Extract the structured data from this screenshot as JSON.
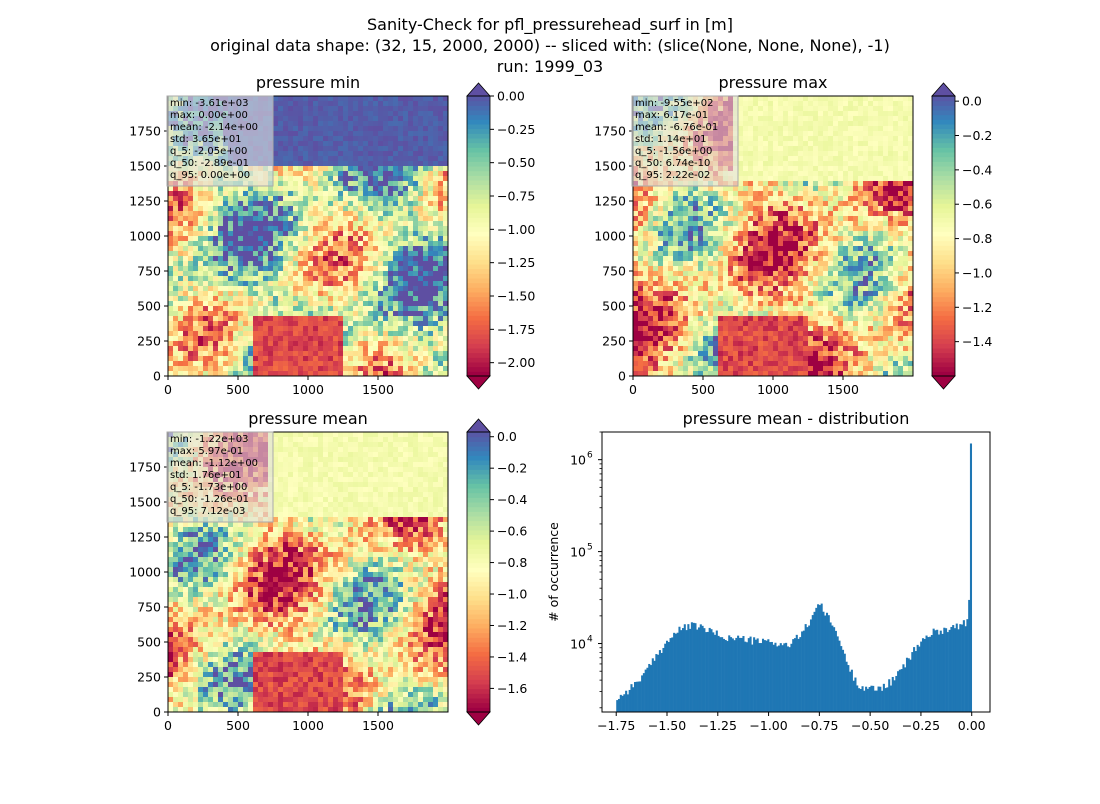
{
  "suptitle": [
    "Sanity-Check for pfl_pressurehead_surf in [m]",
    "original data shape: (32, 15, 2000, 2000) -- sliced with: (slice(None, None, None), -1)",
    "run: 1999_03"
  ],
  "chart_data": [
    {
      "type": "heatmap",
      "title": "pressure min",
      "xlim": [
        0,
        2000
      ],
      "ylim": [
        0,
        2000
      ],
      "xticks": [
        "0",
        "500",
        "1000",
        "1500"
      ],
      "yticks": [
        "0",
        "250",
        "500",
        "750",
        "1000",
        "1250",
        "1500",
        "1750"
      ],
      "colormap": "Spectral",
      "colorbar": {
        "range": [
          -2.1,
          0.0
        ],
        "ticks": [
          "0.00",
          "−0.25",
          "−0.50",
          "−0.75",
          "−1.00",
          "−1.25",
          "−1.50",
          "−1.75",
          "−2.00"
        ],
        "extend": "both"
      },
      "stats": [
        "min: -3.61e+03",
        "max: 0.00e+00",
        "mean: -2.14e+00",
        "std: 3.65e+01",
        "q_5: -2.05e+00",
        "q_50: -2.89e-01",
        "q_95: 0.00e+00"
      ]
    },
    {
      "type": "heatmap",
      "title": "pressure max",
      "xlim": [
        0,
        2000
      ],
      "ylim": [
        0,
        2000
      ],
      "xticks": [
        "0",
        "500",
        "1000",
        "1500"
      ],
      "yticks": [
        "0",
        "250",
        "500",
        "750",
        "1000",
        "1250",
        "1500",
        "1750"
      ],
      "colormap": "Spectral",
      "colorbar": {
        "range": [
          -1.6,
          0.03
        ],
        "ticks": [
          "0.0",
          "−0.2",
          "−0.4",
          "−0.6",
          "−0.8",
          "−1.0",
          "−1.2",
          "−1.4"
        ],
        "extend": "both"
      },
      "stats": [
        "min: -9.55e+02",
        "max: 6.17e-01",
        "mean: -6.76e-01",
        "std: 1.14e+01",
        "q_5: -1.56e+00",
        "q_50: 6.74e-10",
        "q_95: 2.22e-02"
      ]
    },
    {
      "type": "heatmap",
      "title": "pressure mean",
      "xlim": [
        0,
        2000
      ],
      "ylim": [
        0,
        2000
      ],
      "xticks": [
        "0",
        "500",
        "1000",
        "1500"
      ],
      "yticks": [
        "0",
        "250",
        "500",
        "750",
        "1000",
        "1250",
        "1500",
        "1750"
      ],
      "colormap": "Spectral",
      "colorbar": {
        "range": [
          -1.75,
          0.03
        ],
        "ticks": [
          "0.0",
          "−0.2",
          "−0.4",
          "−0.6",
          "−0.8",
          "−1.0",
          "−1.2",
          "−1.4",
          "−1.6"
        ],
        "extend": "both"
      },
      "stats": [
        "min: -1.22e+03",
        "max: 5.97e-01",
        "mean: -1.12e+00",
        "std: 1.76e+01",
        "q_5: -1.73e+00",
        "q_50: -1.26e-01",
        "q_95: 7.12e-03"
      ]
    },
    {
      "type": "bar",
      "title": "pressure mean - distribution",
      "xlabel": "",
      "ylabel": "# of occurrence",
      "xlim": [
        -1.82,
        0.09
      ],
      "ylim": [
        1800,
        2000000
      ],
      "yscale": "log",
      "color": "#1f77b4",
      "xticks": [
        "−1.75",
        "−1.50",
        "−1.25",
        "−1.00",
        "−0.75",
        "−0.50",
        "−0.25",
        "0.00"
      ],
      "yticks": [
        {
          "base": "10",
          "exp": "4"
        },
        {
          "base": "10",
          "exp": "5"
        },
        {
          "base": "10",
          "exp": "6"
        }
      ],
      "bins": {
        "start": -1.75,
        "end": 0.0,
        "count": 200
      },
      "count_profile": [
        [
          -1.75,
          2500
        ],
        [
          -1.7,
          3000
        ],
        [
          -1.65,
          3800
        ],
        [
          -1.6,
          5000
        ],
        [
          -1.55,
          7500
        ],
        [
          -1.5,
          10500
        ],
        [
          -1.45,
          13500
        ],
        [
          -1.4,
          15500
        ],
        [
          -1.35,
          15500
        ],
        [
          -1.3,
          14000
        ],
        [
          -1.25,
          12500
        ],
        [
          -1.2,
          11500
        ],
        [
          -1.15,
          11500
        ],
        [
          -1.1,
          11000
        ],
        [
          -1.05,
          10500
        ],
        [
          -1.0,
          10500
        ],
        [
          -0.95,
          10000
        ],
        [
          -0.9,
          9500
        ],
        [
          -0.85,
          12000
        ],
        [
          -0.8,
          17000
        ],
        [
          -0.76,
          27000
        ],
        [
          -0.74,
          25000
        ],
        [
          -0.72,
          21000
        ],
        [
          -0.7,
          18000
        ],
        [
          -0.67,
          14000
        ],
        [
          -0.64,
          9000
        ],
        [
          -0.61,
          6000
        ],
        [
          -0.58,
          4200
        ],
        [
          -0.55,
          3500
        ],
        [
          -0.5,
          3200
        ],
        [
          -0.45,
          3300
        ],
        [
          -0.4,
          3800
        ],
        [
          -0.35,
          5000
        ],
        [
          -0.3,
          7500
        ],
        [
          -0.25,
          10500
        ],
        [
          -0.2,
          13000
        ],
        [
          -0.15,
          14000
        ],
        [
          -0.1,
          15000
        ],
        [
          -0.05,
          16000
        ],
        [
          -0.02,
          17500
        ],
        [
          -0.01,
          35000
        ],
        [
          0.0,
          1500000
        ]
      ]
    }
  ]
}
